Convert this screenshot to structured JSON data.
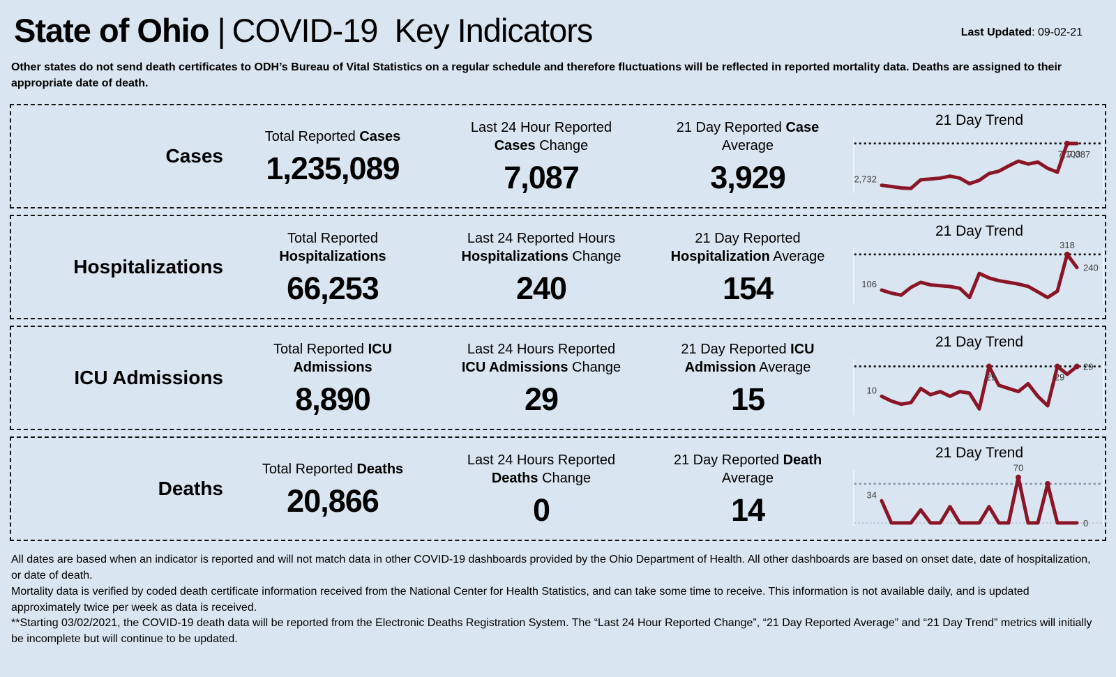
{
  "header": {
    "title_bold": "State of Ohio",
    "title_separator": "|",
    "title_rest": "COVID-19  Key Indicators",
    "last_updated_label": "Last Updated",
    "last_updated_value": ": 09-02-21"
  },
  "disclaimer": "Other states do not send death certificates to ODH’s Bureau of Vital Statistics on a regular schedule and therefore fluctuations will be reflected in reported mortality data. Deaths are assigned to their appropriate date of death.",
  "rows": [
    {
      "label": "Cases",
      "trend_title": "21 Day Trend",
      "stats": [
        {
          "pre": "Total Reported ",
          "bold": "Cases",
          "post": "",
          "value": "1,235,089"
        },
        {
          "pre": "Last 24 Hour Reported ",
          "bold": "Cases",
          "post": " Change",
          "value": "7,087"
        },
        {
          "pre": "21 Day Reported ",
          "bold": "Case",
          "post": " Average",
          "value": "3,929"
        }
      ]
    },
    {
      "label": "Hospitalizations",
      "trend_title": "21 Day Trend",
      "stats": [
        {
          "pre": "Total Reported ",
          "bold": "Hospitalizations",
          "post": "",
          "value": "66,253"
        },
        {
          "pre": "Last 24 Reported Hours ",
          "bold": "Hospitalizations",
          "post": " Change",
          "value": "240"
        },
        {
          "pre": "21 Day Reported ",
          "bold": "Hospitalization",
          "post": " Average",
          "value": "154"
        }
      ]
    },
    {
      "label": "ICU Admissions",
      "trend_title": "21 Day Trend",
      "stats": [
        {
          "pre": "Total Reported ",
          "bold": "ICU Admissions",
          "post": "",
          "value": "8,890"
        },
        {
          "pre": "Last 24 Hours Reported ",
          "bold": "ICU Admissions",
          "post": " Change",
          "value": "29"
        },
        {
          "pre": "21 Day Reported ",
          "bold": "ICU Admission",
          "post": " Average",
          "value": "15"
        }
      ]
    },
    {
      "label": "Deaths",
      "trend_title": "21 Day Trend",
      "stats": [
        {
          "pre": "Total Reported ",
          "bold": "Deaths",
          "post": "",
          "value": "20,866"
        },
        {
          "pre": "Last 24 Hours Reported ",
          "bold": "Deaths",
          "post": " Change",
          "value": "0"
        },
        {
          "pre": "21 Day Reported ",
          "bold": "Death",
          "post": " Average",
          "value": "14"
        }
      ]
    }
  ],
  "footer": [
    "All dates are based when an indicator is reported and will not match data in other COVID-19 dashboards provided by the Ohio Department of Health. All other dashboards are based on onset date, date of hospitalization, or date of death.",
    "Mortality data is verified by coded death certificate information received from the National Center for Health Statistics, and can take some time to receive. This information is not available daily, and is updated approximately twice per week as data is received.",
    "**Starting 03/02/2021, the COVID-19 death data will be reported from the Electronic Deaths Registration System. The “Last 24 Hour Reported Change”, “21 Day Reported Average” and “21 Day Trend” metrics will initially be incomplete but will continue to be updated."
  ],
  "colors": {
    "page_background": "#d9e5f0",
    "trend_line": "#8a1527",
    "annotation_text": "#3c3c3c",
    "dotted_reference_dark": "#1b1b1b",
    "dotted_reference_gray": "#8c98a8",
    "baseline_dotted": "#b7c4d4",
    "chart_edge_line": "#edf3f9",
    "border": "#111111"
  },
  "chart_data": [
    {
      "type": "line",
      "metric": "Cases",
      "title": "21 Day Trend",
      "values": [
        2732,
        2600,
        2450,
        2400,
        3300,
        3380,
        3480,
        3680,
        3480,
        2900,
        3250,
        3950,
        4200,
        4750,
        5250,
        4950,
        5150,
        4500,
        4100,
        7103,
        7087
      ],
      "ylim": [
        2200,
        7300
      ],
      "dotted_reference_value": 7103,
      "dotted_style": "dark",
      "baseline_dotted": false,
      "markers": [
        19
      ],
      "annotations": [
        {
          "text": "2,732",
          "index": 0,
          "anchor": "left"
        },
        {
          "text": "7,103",
          "index": 19,
          "anchor": "below"
        },
        {
          "text": "7,087",
          "index": 20,
          "anchor": "below"
        }
      ]
    },
    {
      "type": "line",
      "metric": "Hospitalizations",
      "title": "21 Day Trend",
      "values": [
        106,
        88,
        76,
        122,
        152,
        137,
        132,
        127,
        117,
        62,
        205,
        178,
        162,
        152,
        142,
        128,
        95,
        62,
        100,
        318,
        240
      ],
      "ylim": [
        40,
        330
      ],
      "dotted_reference_value": 318,
      "dotted_style": "dark",
      "baseline_dotted": false,
      "markers": [
        19
      ],
      "annotations": [
        {
          "text": "106",
          "index": 0,
          "anchor": "left"
        },
        {
          "text": "318",
          "index": 19,
          "anchor": "above"
        },
        {
          "text": "240",
          "index": 20,
          "anchor": "right"
        }
      ]
    },
    {
      "type": "line",
      "metric": "ICU Admissions",
      "title": "21 Day Trend",
      "values": [
        10,
        7,
        5,
        6,
        15,
        11,
        13,
        10,
        13,
        12,
        2,
        29,
        17,
        15,
        13,
        18,
        10,
        4,
        29,
        24,
        29
      ],
      "ylim": [
        0,
        31
      ],
      "dotted_reference_value": 29,
      "dotted_style": "dark",
      "baseline_dotted": false,
      "markers": [
        11,
        18,
        20
      ],
      "annotations": [
        {
          "text": "10",
          "index": 0,
          "anchor": "left"
        },
        {
          "text": "29",
          "index": 11,
          "anchor": "below"
        },
        {
          "text": "29",
          "index": 18,
          "anchor": "below"
        },
        {
          "text": "29",
          "index": 20,
          "anchor": "right"
        }
      ]
    },
    {
      "type": "line",
      "metric": "Deaths",
      "title": "21 Day Trend",
      "values": [
        34,
        0,
        0,
        0,
        20,
        0,
        0,
        25,
        0,
        0,
        0,
        25,
        0,
        0,
        70,
        0,
        0,
        60,
        0,
        0,
        0
      ],
      "ylim": [
        0,
        75
      ],
      "dotted_reference_value": 60,
      "dotted_style": "gray",
      "baseline_dotted": true,
      "markers": [
        14,
        17
      ],
      "annotations": [
        {
          "text": "34",
          "index": 0,
          "anchor": "left"
        },
        {
          "text": "70",
          "index": 14,
          "anchor": "above"
        },
        {
          "text": "0",
          "index": 20,
          "anchor": "right"
        }
      ]
    }
  ]
}
